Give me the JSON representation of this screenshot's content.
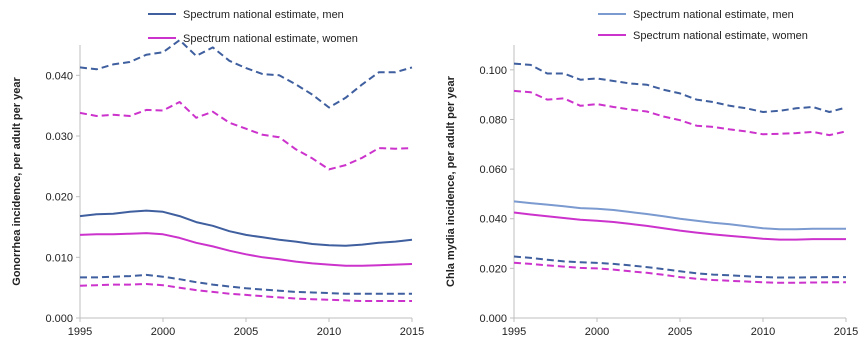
{
  "colors": {
    "men": "#3f5f9f",
    "men_light": "#7b9ad0",
    "women": "#cc33cc",
    "axis": "#bfbfbf"
  },
  "chart_data": [
    {
      "type": "line",
      "ylabel": "Gonorrhea incidence, per adult per year",
      "xlim": [
        1995,
        2015
      ],
      "ylim": [
        0,
        0.045
      ],
      "xticks": [
        1995,
        2000,
        2005,
        2010,
        2015
      ],
      "xtick_labels": [
        "1995",
        "2000",
        "2005",
        "2010",
        "2015"
      ],
      "yticks": [
        0,
        0.01,
        0.02,
        0.03,
        0.04
      ],
      "ytick_labels": [
        "0.000",
        "0.010",
        "0.020",
        "0.030",
        "0.040"
      ],
      "grid": false,
      "legend": [
        "Spectrum national estimate, men",
        "Spectrum national estimate, women"
      ],
      "legend_position": "top",
      "x": [
        1995,
        1996,
        1997,
        1998,
        1999,
        2000,
        2001,
        2002,
        2003,
        2004,
        2005,
        2006,
        2007,
        2008,
        2009,
        2010,
        2011,
        2012,
        2013,
        2014,
        2015
      ],
      "series": [
        {
          "name": "Spectrum national estimate, men",
          "color": "men",
          "values": [
            0.0168,
            0.0171,
            0.0172,
            0.0175,
            0.0177,
            0.0175,
            0.0168,
            0.0158,
            0.0152,
            0.0143,
            0.0137,
            0.0133,
            0.0129,
            0.0126,
            0.0122,
            0.012,
            0.0119,
            0.0121,
            0.0124,
            0.0126,
            0.0129
          ]
        },
        {
          "name": "Spectrum national estimate, women",
          "color": "women",
          "values": [
            0.0137,
            0.0138,
            0.0138,
            0.0139,
            0.014,
            0.0138,
            0.0132,
            0.0124,
            0.0118,
            0.0111,
            0.0105,
            0.01,
            0.0097,
            0.0093,
            0.009,
            0.0088,
            0.0086,
            0.0086,
            0.0087,
            0.0088,
            0.0089
          ]
        },
        {
          "name": "",
          "color": "men",
          "dashed": true,
          "values": [
            0.0413,
            0.041,
            0.0418,
            0.0422,
            0.0434,
            0.0438,
            0.0458,
            0.0432,
            0.0446,
            0.0424,
            0.0412,
            0.0402,
            0.04,
            0.0385,
            0.0368,
            0.0347,
            0.0363,
            0.0385,
            0.0405,
            0.0405,
            0.0413
          ]
        },
        {
          "name": "",
          "color": "women",
          "dashed": true,
          "values": [
            0.0338,
            0.0333,
            0.0335,
            0.0333,
            0.0343,
            0.0342,
            0.0356,
            0.033,
            0.034,
            0.0322,
            0.0312,
            0.0302,
            0.0298,
            0.0278,
            0.0263,
            0.0245,
            0.0252,
            0.0264,
            0.028,
            0.0279,
            0.028
          ]
        },
        {
          "name": "",
          "color": "men",
          "dashed": true,
          "values": [
            0.0067,
            0.0067,
            0.0068,
            0.0069,
            0.0071,
            0.0068,
            0.0064,
            0.0059,
            0.0055,
            0.0052,
            0.0049,
            0.0047,
            0.0045,
            0.0043,
            0.0042,
            0.0041,
            0.004,
            0.004,
            0.004,
            0.004,
            0.004
          ]
        },
        {
          "name": "",
          "color": "women",
          "dashed": true,
          "values": [
            0.0053,
            0.0054,
            0.0055,
            0.0055,
            0.0056,
            0.0054,
            0.005,
            0.0046,
            0.0043,
            0.004,
            0.0038,
            0.0036,
            0.0034,
            0.0032,
            0.0031,
            0.003,
            0.0029,
            0.0028,
            0.0028,
            0.0028,
            0.0028
          ]
        }
      ]
    },
    {
      "type": "line",
      "ylabel": "Chla mydia incidence, per adult per year",
      "xlim": [
        1995,
        2015
      ],
      "ylim": [
        0,
        0.11
      ],
      "xticks": [
        1995,
        2000,
        2005,
        2010,
        2015
      ],
      "xtick_labels": [
        "1995",
        "2000",
        "2005",
        "2010",
        "2015"
      ],
      "yticks": [
        0,
        0.02,
        0.04,
        0.06,
        0.08,
        0.1
      ],
      "ytick_labels": [
        "0.000",
        "0.020",
        "0.040",
        "0.060",
        "0.080",
        "0.100"
      ],
      "grid": false,
      "legend": [
        "Spectrum national estimate, men",
        "Spectrum national estimate, women"
      ],
      "legend_position": "top",
      "x": [
        1995,
        1996,
        1997,
        1998,
        1999,
        2000,
        2001,
        2002,
        2003,
        2004,
        2005,
        2006,
        2007,
        2008,
        2009,
        2010,
        2011,
        2012,
        2013,
        2014,
        2015
      ],
      "series": [
        {
          "name": "Spectrum national estimate, men",
          "color": "men_light",
          "values": [
            0.047,
            0.0463,
            0.0457,
            0.045,
            0.0443,
            0.044,
            0.0435,
            0.0427,
            0.0419,
            0.041,
            0.04,
            0.0392,
            0.0384,
            0.0378,
            0.037,
            0.0362,
            0.0358,
            0.0358,
            0.036,
            0.036,
            0.036
          ]
        },
        {
          "name": "Spectrum national estimate, women",
          "color": "women",
          "values": [
            0.0425,
            0.0417,
            0.041,
            0.0403,
            0.0396,
            0.0392,
            0.0387,
            0.0379,
            0.0371,
            0.0362,
            0.0352,
            0.0344,
            0.0337,
            0.0331,
            0.0325,
            0.0319,
            0.0316,
            0.0316,
            0.0318,
            0.0318,
            0.0318
          ]
        },
        {
          "name": "",
          "color": "men",
          "dashed": true,
          "values": [
            0.1025,
            0.102,
            0.0985,
            0.0985,
            0.096,
            0.0965,
            0.0955,
            0.0945,
            0.094,
            0.092,
            0.0905,
            0.088,
            0.087,
            0.0855,
            0.0845,
            0.083,
            0.0835,
            0.0845,
            0.085,
            0.083,
            0.0848
          ]
        },
        {
          "name": "",
          "color": "women",
          "dashed": true,
          "values": [
            0.0915,
            0.091,
            0.088,
            0.0885,
            0.0855,
            0.0862,
            0.085,
            0.084,
            0.0832,
            0.0812,
            0.0797,
            0.0775,
            0.077,
            0.076,
            0.0752,
            0.074,
            0.0742,
            0.0745,
            0.075,
            0.0737,
            0.0752
          ]
        },
        {
          "name": "",
          "color": "men",
          "dashed": true,
          "values": [
            0.0248,
            0.0242,
            0.0235,
            0.0228,
            0.0225,
            0.0222,
            0.0218,
            0.0212,
            0.0205,
            0.0197,
            0.0188,
            0.018,
            0.0175,
            0.0172,
            0.0168,
            0.0165,
            0.0163,
            0.0163,
            0.0164,
            0.0165,
            0.0165
          ]
        },
        {
          "name": "",
          "color": "women",
          "dashed": true,
          "values": [
            0.0223,
            0.0218,
            0.0212,
            0.0207,
            0.0202,
            0.02,
            0.0195,
            0.0188,
            0.0182,
            0.0174,
            0.0165,
            0.0158,
            0.0153,
            0.015,
            0.0147,
            0.0144,
            0.0142,
            0.0142,
            0.0143,
            0.0144,
            0.0144
          ]
        }
      ]
    }
  ]
}
